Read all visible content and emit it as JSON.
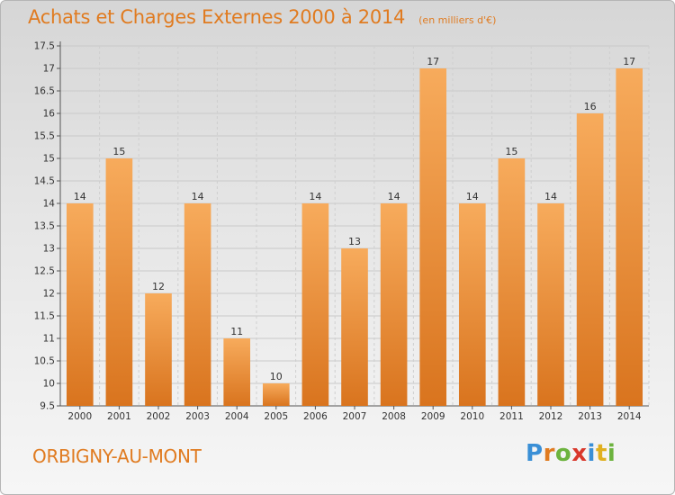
{
  "header": {
    "title": "Achats et Charges Externes 2000 à 2014",
    "subtitle": "(en milliers d'€)"
  },
  "footer": {
    "commune": "ORBIGNY-AU-MONT"
  },
  "logo": {
    "text": "Proxiti",
    "letters": [
      {
        "char": "P",
        "color": "#3a8fd6"
      },
      {
        "char": "r",
        "color": "#e07b20"
      },
      {
        "char": "o",
        "color": "#6cb33e"
      },
      {
        "char": "x",
        "color": "#d9382c"
      },
      {
        "char": "i",
        "color": "#3a8fd6"
      },
      {
        "char": "t",
        "color": "#e0b020"
      },
      {
        "char": "i",
        "color": "#6cb33e"
      }
    ]
  },
  "chart_data": {
    "type": "bar",
    "title": "Achats et Charges Externes 2000 à 2014",
    "subtitle": "(en milliers d'€)",
    "categories": [
      "2000",
      "2001",
      "2002",
      "2003",
      "2004",
      "2005",
      "2006",
      "2007",
      "2008",
      "2009",
      "2010",
      "2011",
      "2012",
      "2013",
      "2014"
    ],
    "values": [
      14,
      15,
      12,
      14,
      11,
      10,
      14,
      13,
      14,
      17,
      14,
      15,
      14,
      16,
      17
    ],
    "ylim": [
      9.5,
      17.5
    ],
    "yticks": [
      "9.5",
      "10",
      "10.5",
      "11",
      "11.5",
      "12",
      "12.5",
      "13",
      "13.5",
      "14",
      "14.5",
      "15",
      "15.5",
      "16",
      "16.5",
      "17",
      "17.5"
    ],
    "grid": true,
    "bar_color": "#f0913a",
    "bar_color_light": "#f6a95a",
    "bar_color_dark": "#d9741e"
  }
}
